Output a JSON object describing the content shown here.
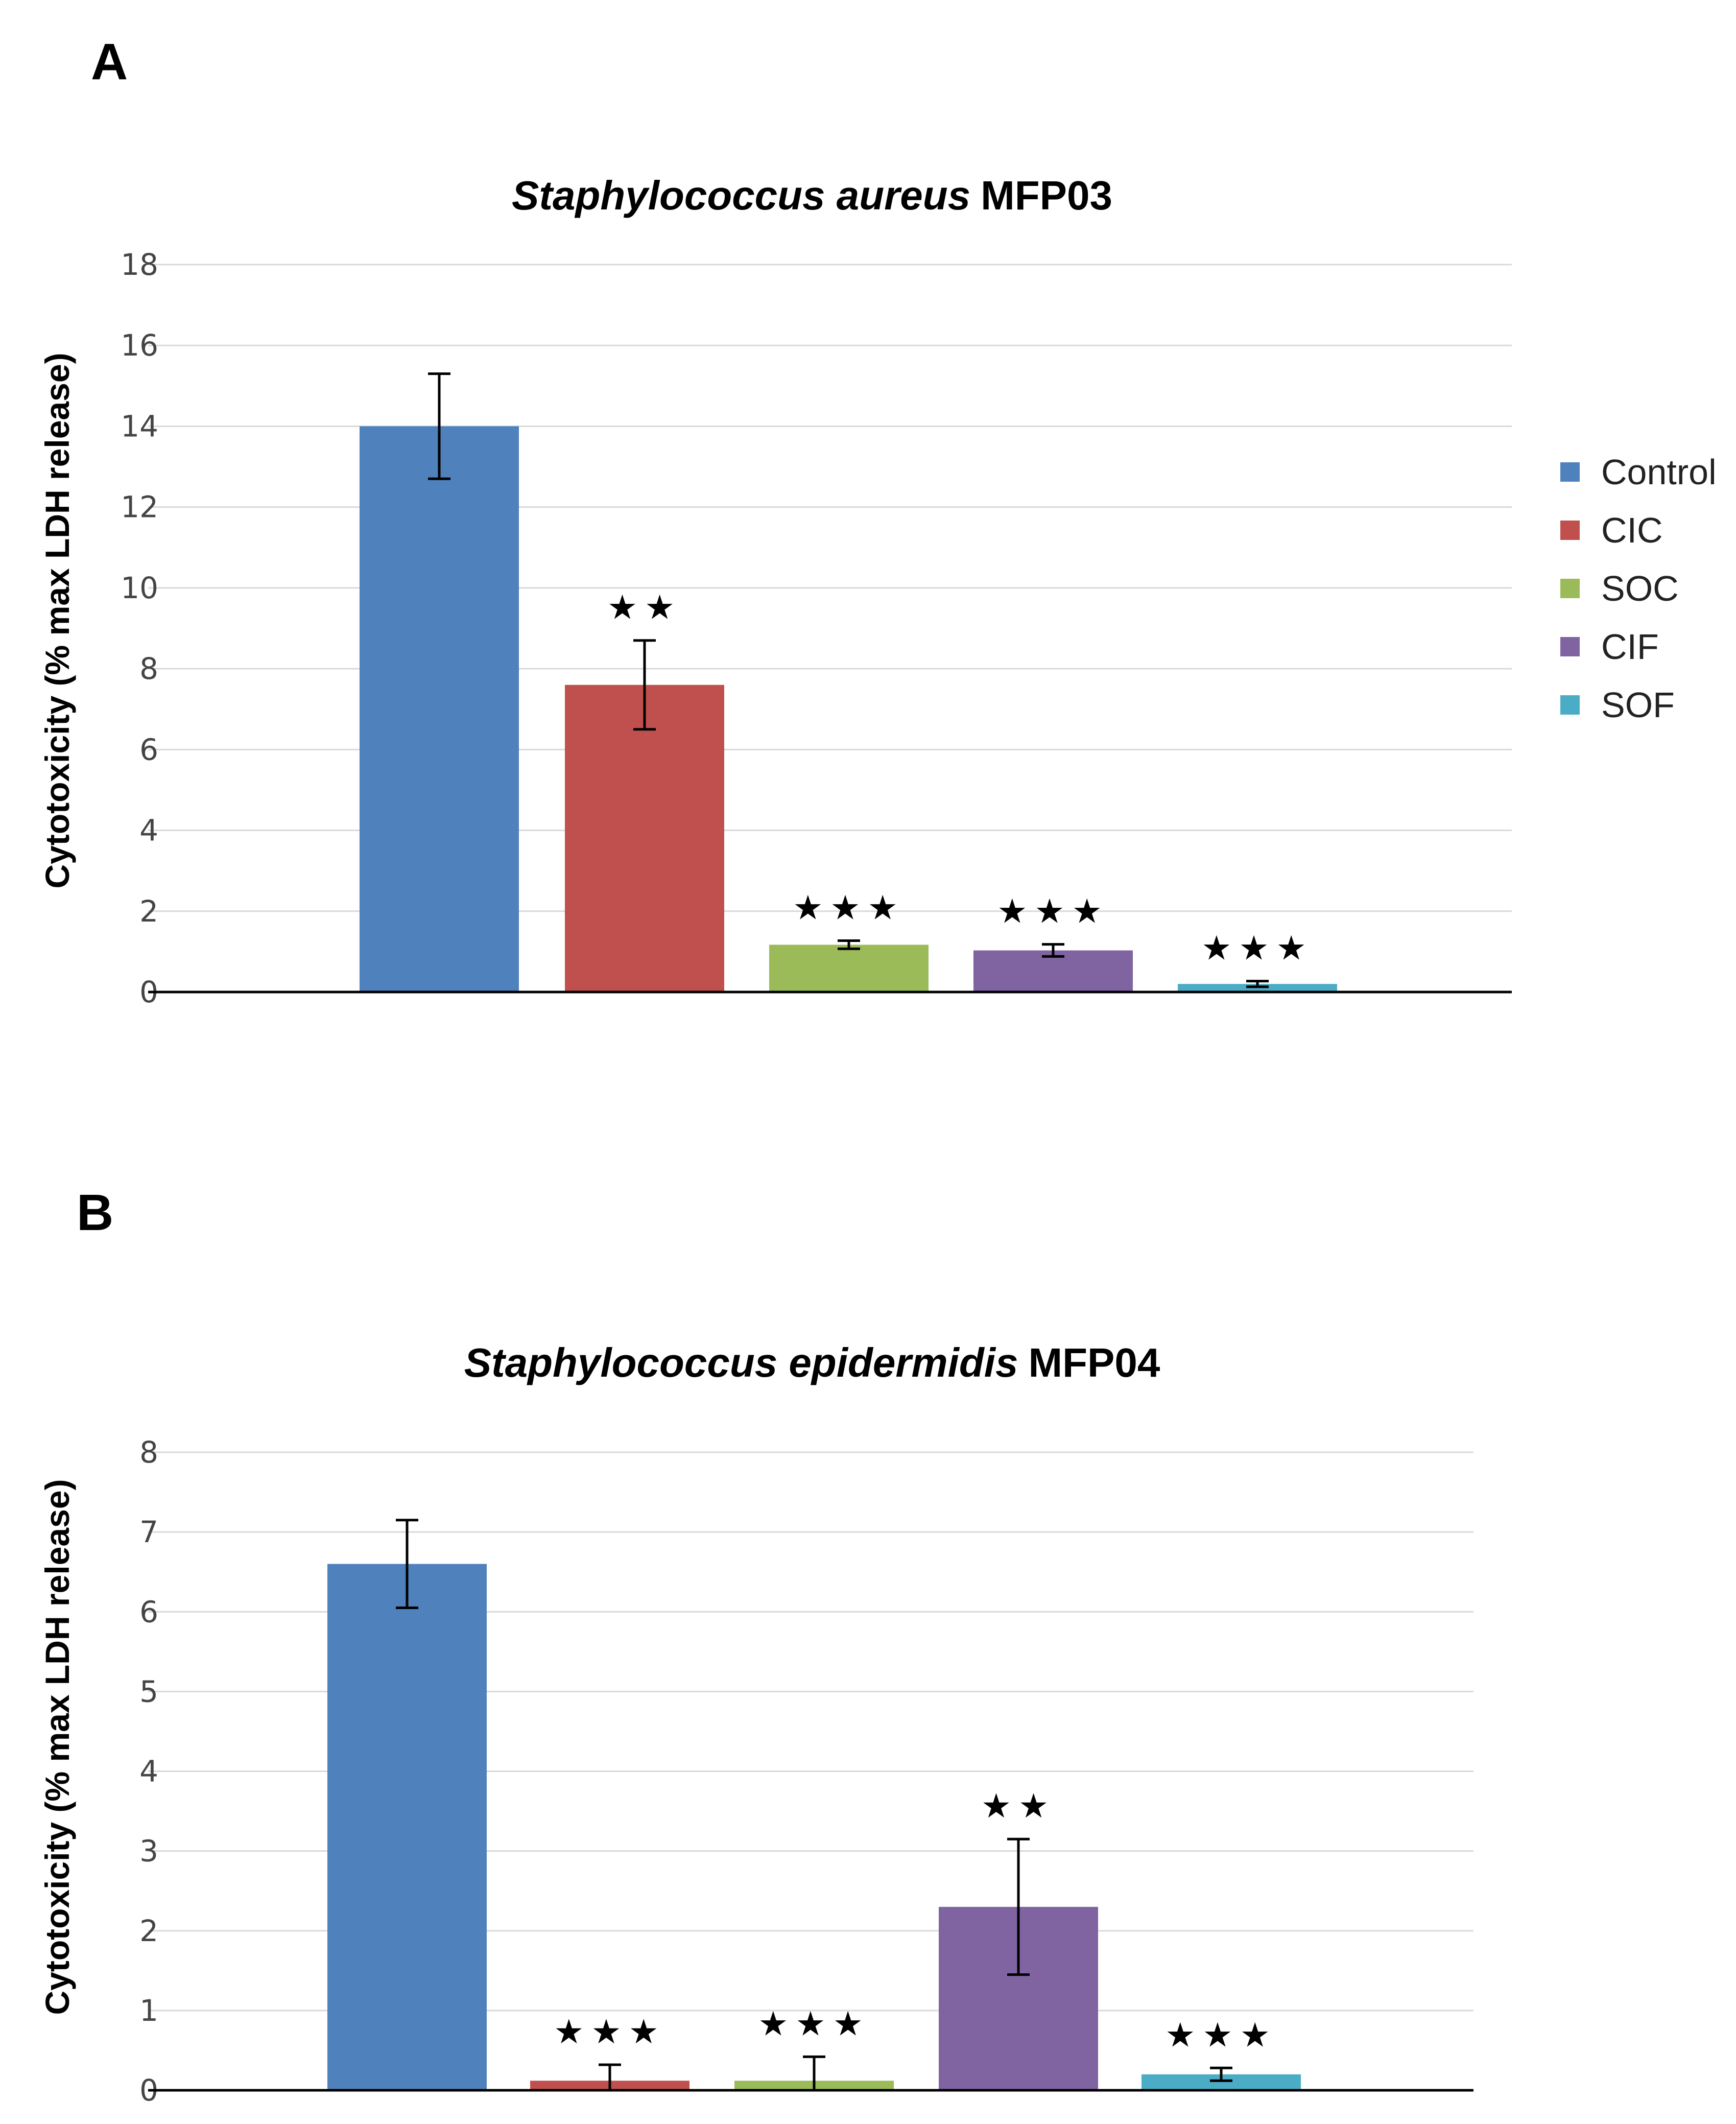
{
  "panels": [
    {
      "letter": "A",
      "title_italic": "Staphylococcus aureus",
      "title_rest": "MFP03"
    },
    {
      "letter": "B",
      "title_italic": "Staphylococcus epidermidis",
      "title_rest": "MFP04"
    }
  ],
  "legend": {
    "items": [
      {
        "label": "Control",
        "color": "#4F81BD"
      },
      {
        "label": "CIC",
        "color": "#C0504D"
      },
      {
        "label": "SOC",
        "color": "#9BBB59"
      },
      {
        "label": "CIF",
        "color": "#8064A2"
      },
      {
        "label": "SOF",
        "color": "#4BACC6"
      }
    ]
  },
  "chart_data": [
    {
      "type": "bar",
      "title": "Staphylococcus aureus MFP03",
      "ylabel": "Cytotoxicity (% max LDH release)",
      "ylim": [
        0,
        18
      ],
      "yticks": [
        0,
        2,
        4,
        6,
        8,
        10,
        12,
        14,
        16,
        18
      ],
      "grid": true,
      "legend_position": "right",
      "categories": [
        "Control",
        "CIC",
        "SOC",
        "CIF",
        "SOF"
      ],
      "values": [
        14.0,
        7.6,
        1.17,
        1.03,
        0.2
      ],
      "errors": [
        1.3,
        1.1,
        0.1,
        0.15,
        0.07
      ],
      "significance": [
        "",
        "★★",
        "★★★",
        "★★★",
        "★★★"
      ],
      "colors": [
        "#4F81BD",
        "#C0504D",
        "#9BBB59",
        "#8064A2",
        "#4BACC6"
      ]
    },
    {
      "type": "bar",
      "title": "Staphylococcus epidermidis MFP04",
      "ylabel": "Cytotoxicity (% max LDH release)",
      "ylim": [
        0,
        8
      ],
      "yticks": [
        0,
        1,
        2,
        3,
        4,
        5,
        6,
        7,
        8
      ],
      "grid": true,
      "categories": [
        "Control",
        "CIC",
        "SOC",
        "CIF",
        "SOF"
      ],
      "values": [
        6.6,
        0.12,
        0.12,
        2.3,
        0.2
      ],
      "errors": [
        0.55,
        0.2,
        0.3,
        0.85,
        0.08
      ],
      "significance": [
        "",
        "★★★",
        "★★★",
        "★★",
        "★★★"
      ],
      "colors": [
        "#4F81BD",
        "#C0504D",
        "#9BBB59",
        "#8064A2",
        "#4BACC6"
      ]
    }
  ]
}
